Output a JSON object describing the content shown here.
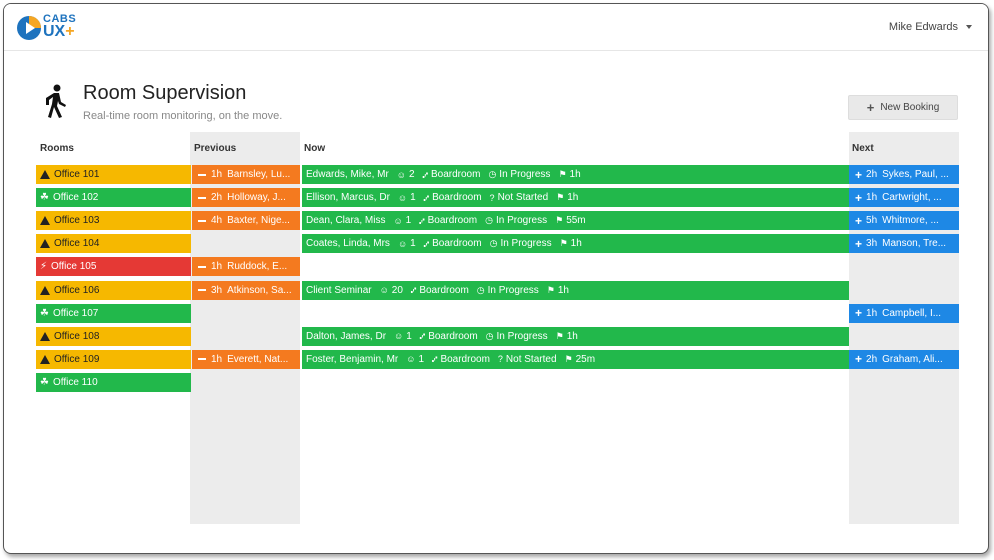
{
  "header": {
    "logo_top": "CABS",
    "logo_bottom": "UX",
    "logo_plus": "+",
    "user_name": "Mike Edwards"
  },
  "page": {
    "title": "Room Supervision",
    "subtitle": "Real-time room monitoring, on the move.",
    "new_booking_label": "New Booking"
  },
  "columns": {
    "rooms": "Rooms",
    "previous": "Previous",
    "now": "Now",
    "next": "Next"
  },
  "colors": {
    "amber": "#f6b800",
    "green": "#22b84b",
    "red": "#e53935",
    "orange": "#f47a1f",
    "blue": "#1e88e5"
  },
  "rows": [
    {
      "room": {
        "name": "Office 101",
        "status": "warning"
      },
      "previous": {
        "duration": "1h",
        "name": "Barnsley, Lu..."
      },
      "now": {
        "name": "Edwards, Mike, Mr",
        "attendees": "2",
        "layout": "Boardroom",
        "state": "In Progress",
        "state_icon": "clock",
        "remaining": "1h"
      },
      "next": {
        "duration": "2h",
        "name": "Sykes, Paul, ..."
      }
    },
    {
      "room": {
        "name": "Office 102",
        "status": "available"
      },
      "previous": {
        "duration": "2h",
        "name": "Holloway, J..."
      },
      "now": {
        "name": "Ellison, Marcus, Dr",
        "attendees": "1",
        "layout": "Boardroom",
        "state": "Not Started",
        "state_icon": "question",
        "remaining": "1h"
      },
      "next": {
        "duration": "1h",
        "name": "Cartwright, ..."
      }
    },
    {
      "room": {
        "name": "Office 103",
        "status": "warning"
      },
      "previous": {
        "duration": "4h",
        "name": "Baxter, Nige..."
      },
      "now": {
        "name": "Dean, Clara, Miss",
        "attendees": "1",
        "layout": "Boardroom",
        "state": "In Progress",
        "state_icon": "clock",
        "remaining": "55m"
      },
      "next": {
        "duration": "5h",
        "name": "Whitmore, ..."
      }
    },
    {
      "room": {
        "name": "Office 104",
        "status": "warning"
      },
      "previous": null,
      "now": {
        "name": "Coates, Linda, Mrs",
        "attendees": "1",
        "layout": "Boardroom",
        "state": "In Progress",
        "state_icon": "clock",
        "remaining": "1h"
      },
      "next": {
        "duration": "3h",
        "name": "Manson, Tre..."
      }
    },
    {
      "room": {
        "name": "Office 105",
        "status": "alarm"
      },
      "previous": {
        "duration": "1h",
        "name": "Ruddock, E..."
      },
      "now": null,
      "next": null
    },
    {
      "room": {
        "name": "Office 106",
        "status": "warning"
      },
      "previous": {
        "duration": "3h",
        "name": "Atkinson, Sa..."
      },
      "now": {
        "name": "Client Seminar",
        "attendees": "20",
        "layout": "Boardroom",
        "state": "In Progress",
        "state_icon": "clock",
        "remaining": "1h"
      },
      "next": null
    },
    {
      "room": {
        "name": "Office 107",
        "status": "available"
      },
      "previous": null,
      "now": null,
      "next": {
        "duration": "1h",
        "name": "Campbell, I..."
      }
    },
    {
      "room": {
        "name": "Office 108",
        "status": "warning"
      },
      "previous": null,
      "now": {
        "name": "Dalton, James, Dr",
        "attendees": "1",
        "layout": "Boardroom",
        "state": "In Progress",
        "state_icon": "clock",
        "remaining": "1h"
      },
      "next": null
    },
    {
      "room": {
        "name": "Office 109",
        "status": "warning"
      },
      "previous": {
        "duration": "1h",
        "name": "Everett, Nat..."
      },
      "now": {
        "name": "Foster, Benjamin, Mr",
        "attendees": "1",
        "layout": "Boardroom",
        "state": "Not Started",
        "state_icon": "question",
        "remaining": "25m"
      },
      "next": {
        "duration": "2h",
        "name": "Graham, Ali..."
      }
    },
    {
      "room": {
        "name": "Office 110",
        "status": "available"
      },
      "previous": null,
      "now": null,
      "next": null
    }
  ]
}
